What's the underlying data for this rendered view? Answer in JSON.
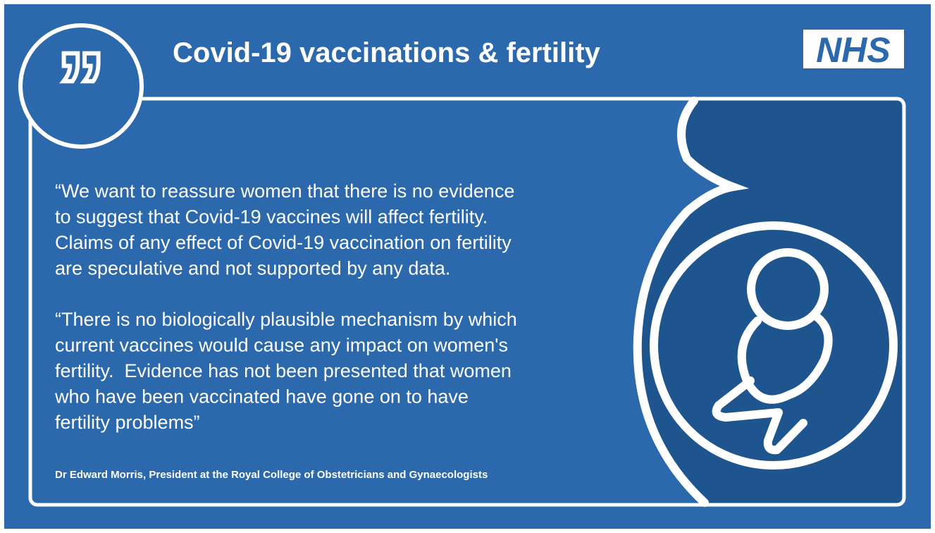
{
  "header": {
    "title": "Covid-19 vaccinations & fertility",
    "logo": "NHS"
  },
  "quote": {
    "paragraphs": [
      [
        "“We want to reassure women that there is no evidence",
        "to suggest that Covid-19 vaccines will affect fertility.",
        "Claims of any effect of Covid-19 vaccination on fertility",
        "are speculative and not supported by any data."
      ],
      [
        "“There is no biologically plausible mechanism by which",
        "current vaccines would cause any impact on women's",
        "fertility.  Evidence has not been presented that women",
        "who have been vaccinated have gone on to have",
        "fertility problems”"
      ]
    ],
    "attribution": "Dr Edward Morris, President at the Royal College of Obstetricians and Gynaecologists"
  }
}
